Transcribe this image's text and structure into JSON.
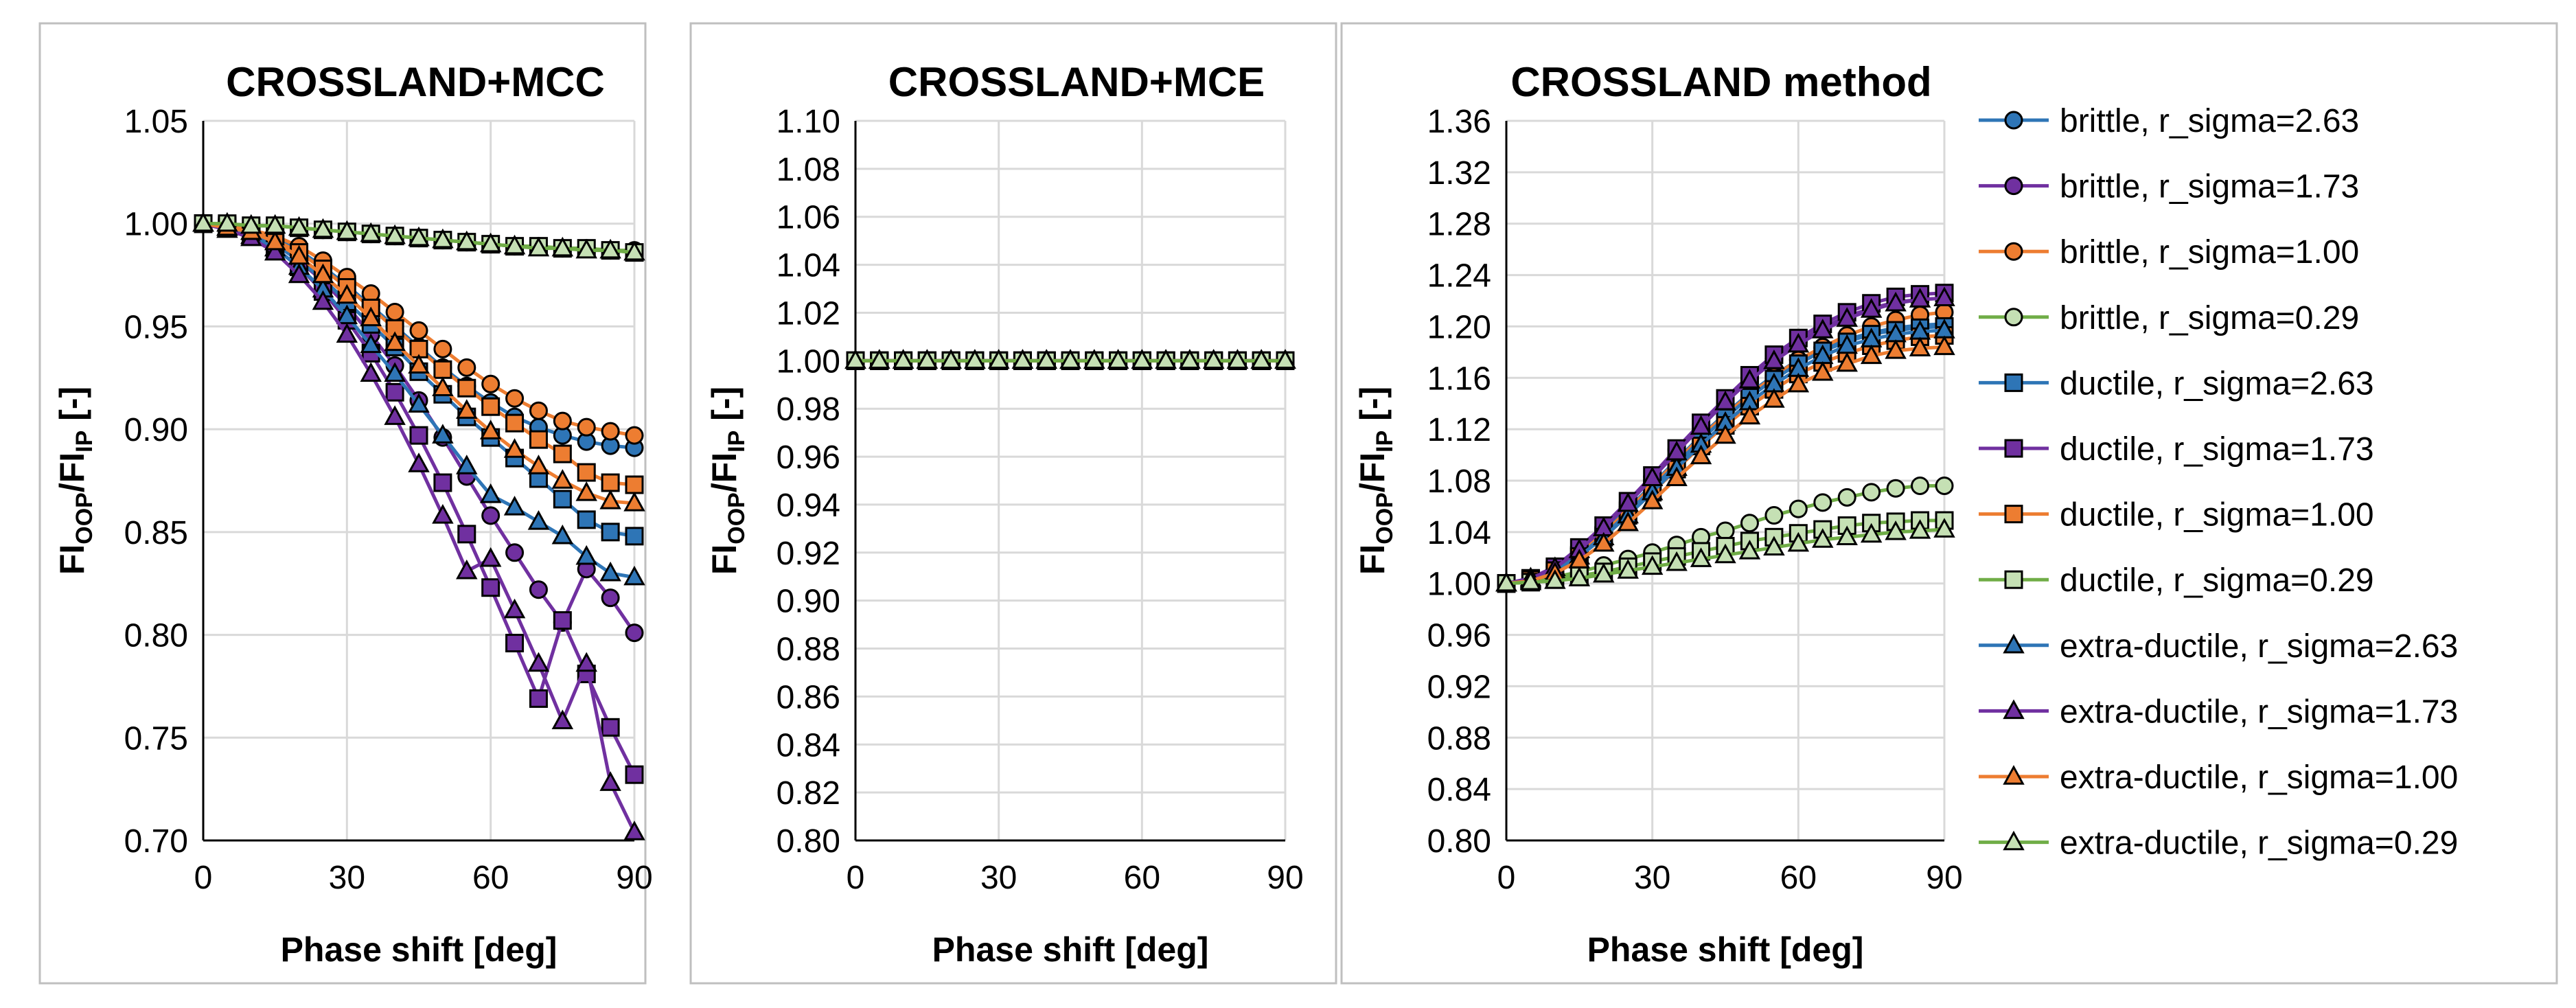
{
  "chart_data": [
    {
      "type": "line",
      "title": "CROSSLAND+MCC",
      "xlabel": "Phase shift [deg]",
      "ylabel": {
        "main1": "FI",
        "sub1": "OOP",
        "main2": "/FI",
        "sub2": "IP",
        "tail": " [-]"
      },
      "xlim": [
        0,
        90
      ],
      "ylim": [
        0.7,
        1.05
      ],
      "xticks": [
        "0",
        "30",
        "60",
        "90"
      ],
      "yticks": [
        "0.70",
        "0.75",
        "0.80",
        "0.85",
        "0.90",
        "0.95",
        "1.00",
        "1.05"
      ],
      "x": [
        0,
        5,
        10,
        15,
        20,
        25,
        30,
        35,
        40,
        45,
        50,
        55,
        60,
        65,
        70,
        75,
        80,
        85,
        90
      ],
      "series": [
        {
          "name": "brittle, r_sigma=2.63",
          "values": [
            1.0,
            0.999,
            0.997,
            0.993,
            0.987,
            0.979,
            0.97,
            0.96,
            0.95,
            0.94,
            0.93,
            0.921,
            0.913,
            0.906,
            0.901,
            0.897,
            0.894,
            0.892,
            0.891
          ]
        },
        {
          "name": "brittle, r_sigma=1.73",
          "values": [
            1.0,
            0.998,
            0.995,
            0.99,
            0.982,
            0.972,
            0.96,
            0.946,
            0.931,
            0.914,
            0.896,
            0.877,
            0.858,
            0.84,
            0.822,
            0.806,
            0.832,
            0.818,
            0.801
          ]
        },
        {
          "name": "brittle, r_sigma=1.00",
          "values": [
            1.0,
            0.999,
            0.997,
            0.994,
            0.989,
            0.982,
            0.974,
            0.966,
            0.957,
            0.948,
            0.939,
            0.93,
            0.922,
            0.915,
            0.909,
            0.904,
            0.901,
            0.899,
            0.897
          ]
        },
        {
          "name": "brittle, r_sigma=0.29",
          "values": [
            1.0,
            1.0,
            0.999,
            0.999,
            0.998,
            0.997,
            0.996,
            0.995,
            0.994,
            0.993,
            0.992,
            0.991,
            0.99,
            0.989,
            0.989,
            0.988,
            0.988,
            0.987,
            0.987
          ]
        },
        {
          "name": "ductile, r_sigma=2.63",
          "values": [
            1.0,
            0.998,
            0.995,
            0.99,
            0.982,
            0.973,
            0.962,
            0.951,
            0.94,
            0.928,
            0.917,
            0.906,
            0.896,
            0.886,
            0.876,
            0.866,
            0.856,
            0.85,
            0.848
          ]
        },
        {
          "name": "ductile, r_sigma=1.73",
          "values": [
            1.0,
            0.998,
            0.994,
            0.988,
            0.979,
            0.967,
            0.953,
            0.937,
            0.918,
            0.897,
            0.874,
            0.849,
            0.823,
            0.796,
            0.769,
            0.807,
            0.781,
            0.755,
            0.732
          ]
        },
        {
          "name": "ductile, r_sigma=1.00",
          "values": [
            1.0,
            0.999,
            0.996,
            0.992,
            0.986,
            0.978,
            0.969,
            0.959,
            0.949,
            0.939,
            0.929,
            0.92,
            0.911,
            0.903,
            0.895,
            0.888,
            0.879,
            0.874,
            0.873
          ]
        },
        {
          "name": "ductile, r_sigma=0.29",
          "values": [
            1.0,
            1.0,
            0.999,
            0.999,
            0.998,
            0.997,
            0.996,
            0.995,
            0.994,
            0.993,
            0.992,
            0.991,
            0.99,
            0.989,
            0.989,
            0.988,
            0.988,
            0.987,
            0.986
          ]
        },
        {
          "name": "extra-ductile, r_sigma=2.63",
          "values": [
            1.0,
            0.998,
            0.994,
            0.988,
            0.979,
            0.968,
            0.955,
            0.941,
            0.927,
            0.912,
            0.897,
            0.882,
            0.868,
            0.862,
            0.855,
            0.848,
            0.838,
            0.83,
            0.828
          ]
        },
        {
          "name": "extra-ductile, r_sigma=1.73",
          "values": [
            1.0,
            0.997,
            0.993,
            0.986,
            0.975,
            0.962,
            0.946,
            0.927,
            0.906,
            0.883,
            0.858,
            0.831,
            0.837,
            0.812,
            0.786,
            0.758,
            0.786,
            0.728,
            0.704
          ]
        },
        {
          "name": "extra-ductile, r_sigma=1.00",
          "values": [
            1.0,
            0.998,
            0.996,
            0.991,
            0.984,
            0.975,
            0.965,
            0.954,
            0.942,
            0.931,
            0.92,
            0.909,
            0.899,
            0.89,
            0.882,
            0.875,
            0.869,
            0.865,
            0.864
          ]
        },
        {
          "name": "extra-ductile, r_sigma=0.29",
          "values": [
            1.0,
            1.0,
            0.999,
            0.999,
            0.998,
            0.997,
            0.996,
            0.995,
            0.994,
            0.993,
            0.992,
            0.991,
            0.99,
            0.989,
            0.988,
            0.988,
            0.987,
            0.987,
            0.986
          ]
        }
      ]
    },
    {
      "type": "line",
      "title": "CROSSLAND+MCE",
      "xlabel": "Phase shift [deg]",
      "ylabel": {
        "main1": "FI",
        "sub1": "OOP",
        "main2": "/FI",
        "sub2": "IP",
        "tail": " [-]"
      },
      "xlim": [
        0,
        90
      ],
      "ylim": [
        0.8,
        1.1
      ],
      "xticks": [
        "0",
        "30",
        "60",
        "90"
      ],
      "yticks": [
        "0.80",
        "0.82",
        "0.84",
        "0.86",
        "0.88",
        "0.90",
        "0.92",
        "0.94",
        "0.96",
        "0.98",
        "1.00",
        "1.02",
        "1.04",
        "1.06",
        "1.08",
        "1.10"
      ],
      "x": [
        0,
        5,
        10,
        15,
        20,
        25,
        30,
        35,
        40,
        45,
        50,
        55,
        60,
        65,
        70,
        75,
        80,
        85,
        90
      ],
      "series": [
        {
          "name": "brittle, r_sigma=2.63",
          "values": [
            1,
            1,
            1,
            1,
            1,
            1,
            1,
            1,
            1,
            1,
            1,
            1,
            1,
            1,
            1,
            1,
            1,
            1,
            1
          ]
        },
        {
          "name": "brittle, r_sigma=1.73",
          "values": [
            1,
            1,
            1,
            1,
            1,
            1,
            1,
            1,
            1,
            1,
            1,
            1,
            1,
            1,
            1,
            1,
            1,
            1,
            1
          ]
        },
        {
          "name": "brittle, r_sigma=1.00",
          "values": [
            1,
            1,
            1,
            1,
            1,
            1,
            1,
            1,
            1,
            1,
            1,
            1,
            1,
            1,
            1,
            1,
            1,
            1,
            1
          ]
        },
        {
          "name": "brittle, r_sigma=0.29",
          "values": [
            1,
            1,
            1,
            1,
            1,
            1,
            1,
            1,
            1,
            1,
            1,
            1,
            1,
            1,
            1,
            1,
            1,
            1,
            1
          ]
        },
        {
          "name": "ductile, r_sigma=2.63",
          "values": [
            1,
            1,
            1,
            1,
            1,
            1,
            1,
            1,
            1,
            1,
            1,
            1,
            1,
            1,
            1,
            1,
            1,
            1,
            1
          ]
        },
        {
          "name": "ductile, r_sigma=1.73",
          "values": [
            1,
            1,
            1,
            1,
            1,
            1,
            1,
            1,
            1,
            1,
            1,
            1,
            1,
            1,
            1,
            1,
            1,
            1,
            1
          ]
        },
        {
          "name": "ductile, r_sigma=1.00",
          "values": [
            1,
            1,
            1,
            1,
            1,
            1,
            1,
            1,
            1,
            1,
            1,
            1,
            1,
            1,
            1,
            1,
            1,
            1,
            1
          ]
        },
        {
          "name": "ductile, r_sigma=0.29",
          "values": [
            1,
            1,
            1,
            1,
            1,
            1,
            1,
            1,
            1,
            1,
            1,
            1,
            1,
            1,
            1,
            1,
            1,
            1,
            1
          ]
        },
        {
          "name": "extra-ductile, r_sigma=2.63",
          "values": [
            1,
            1,
            1,
            1,
            1,
            1,
            1,
            1,
            1,
            1,
            1,
            1,
            1,
            1,
            1,
            1,
            1,
            1,
            1
          ]
        },
        {
          "name": "extra-ductile, r_sigma=1.73",
          "values": [
            1,
            1,
            1,
            1,
            1,
            1,
            1,
            1,
            1,
            1,
            1,
            1,
            1,
            1,
            1,
            1,
            1,
            1,
            1
          ]
        },
        {
          "name": "extra-ductile, r_sigma=1.00",
          "values": [
            1,
            1,
            1,
            1,
            1,
            1,
            1,
            1,
            1,
            1,
            1,
            1,
            1,
            1,
            1,
            1,
            1,
            1,
            1
          ]
        },
        {
          "name": "extra-ductile, r_sigma=0.29",
          "values": [
            1,
            1,
            1,
            1,
            1,
            1,
            1,
            1,
            1,
            1,
            1,
            1,
            1,
            1,
            1,
            1,
            1,
            1,
            1
          ]
        }
      ]
    },
    {
      "type": "line",
      "title": "CROSSLAND method",
      "xlabel": "Phase shift [deg]",
      "ylabel": {
        "main1": "FI",
        "sub1": "OOP",
        "main2": "/FI",
        "sub2": "IP",
        "tail": " [-]"
      },
      "xlim": [
        0,
        90
      ],
      "ylim": [
        0.8,
        1.36
      ],
      "xticks": [
        "0",
        "30",
        "60",
        "90"
      ],
      "yticks": [
        "0.80",
        "0.84",
        "0.88",
        "0.92",
        "0.96",
        "1.00",
        "1.04",
        "1.08",
        "1.12",
        "1.16",
        "1.20",
        "1.24",
        "1.28",
        "1.32",
        "1.36"
      ],
      "legend_position": "right",
      "x": [
        0,
        5,
        10,
        15,
        20,
        25,
        30,
        35,
        40,
        45,
        50,
        55,
        60,
        65,
        70,
        75,
        80,
        85,
        90
      ],
      "series": [
        {
          "name": "brittle, r_sigma=2.63",
          "values": [
            1.0,
            1.003,
            1.011,
            1.024,
            1.04,
            1.058,
            1.077,
            1.096,
            1.115,
            1.132,
            1.148,
            1.162,
            1.174,
            1.183,
            1.19,
            1.195,
            1.199,
            1.201,
            1.202
          ]
        },
        {
          "name": "brittle, r_sigma=1.73",
          "values": [
            1.0,
            1.004,
            1.013,
            1.027,
            1.044,
            1.063,
            1.083,
            1.104,
            1.124,
            1.143,
            1.16,
            1.175,
            1.188,
            1.199,
            1.208,
            1.214,
            1.219,
            1.221,
            1.222
          ]
        },
        {
          "name": "brittle, r_sigma=1.00",
          "values": [
            1.0,
            1.003,
            1.011,
            1.023,
            1.039,
            1.057,
            1.076,
            1.095,
            1.114,
            1.131,
            1.147,
            1.161,
            1.174,
            1.184,
            1.193,
            1.2,
            1.205,
            1.209,
            1.211
          ]
        },
        {
          "name": "brittle, r_sigma=0.29",
          "values": [
            1.0,
            1.002,
            1.005,
            1.009,
            1.014,
            1.019,
            1.024,
            1.03,
            1.036,
            1.041,
            1.047,
            1.053,
            1.058,
            1.063,
            1.067,
            1.071,
            1.074,
            1.076,
            1.076
          ]
        },
        {
          "name": "ductile, r_sigma=2.63",
          "values": [
            1.0,
            1.003,
            1.01,
            1.022,
            1.037,
            1.055,
            1.074,
            1.093,
            1.112,
            1.129,
            1.145,
            1.159,
            1.171,
            1.181,
            1.188,
            1.194,
            1.197,
            1.199,
            1.2
          ]
        },
        {
          "name": "ductile, r_sigma=1.73",
          "values": [
            1.0,
            1.004,
            1.013,
            1.028,
            1.045,
            1.064,
            1.084,
            1.105,
            1.125,
            1.144,
            1.162,
            1.178,
            1.191,
            1.202,
            1.211,
            1.218,
            1.223,
            1.225,
            1.226
          ]
        },
        {
          "name": "ductile, r_sigma=1.00",
          "values": [
            1.0,
            1.003,
            1.01,
            1.021,
            1.036,
            1.053,
            1.071,
            1.089,
            1.107,
            1.123,
            1.138,
            1.151,
            1.163,
            1.172,
            1.179,
            1.185,
            1.189,
            1.192,
            1.193
          ]
        },
        {
          "name": "ductile, r_sigma=0.29",
          "values": [
            1.0,
            1.001,
            1.003,
            1.006,
            1.009,
            1.013,
            1.017,
            1.021,
            1.025,
            1.029,
            1.033,
            1.036,
            1.039,
            1.042,
            1.045,
            1.047,
            1.048,
            1.049,
            1.049
          ]
        },
        {
          "name": "extra-ductile, r_sigma=2.63",
          "values": [
            1.0,
            1.003,
            1.01,
            1.021,
            1.036,
            1.053,
            1.071,
            1.09,
            1.108,
            1.125,
            1.141,
            1.155,
            1.167,
            1.177,
            1.185,
            1.19,
            1.194,
            1.196,
            1.197
          ]
        },
        {
          "name": "extra-ductile, r_sigma=1.73",
          "values": [
            1.0,
            1.004,
            1.012,
            1.026,
            1.043,
            1.062,
            1.082,
            1.102,
            1.122,
            1.141,
            1.158,
            1.173,
            1.186,
            1.197,
            1.206,
            1.213,
            1.218,
            1.221,
            1.222
          ]
        },
        {
          "name": "extra-ductile, r_sigma=1.00",
          "values": [
            1.0,
            1.002,
            1.008,
            1.018,
            1.031,
            1.047,
            1.064,
            1.082,
            1.099,
            1.115,
            1.13,
            1.143,
            1.155,
            1.164,
            1.171,
            1.177,
            1.181,
            1.183,
            1.184
          ]
        },
        {
          "name": "extra-ductile, r_sigma=0.29",
          "values": [
            1.0,
            1.001,
            1.002,
            1.004,
            1.007,
            1.01,
            1.013,
            1.016,
            1.019,
            1.022,
            1.025,
            1.028,
            1.031,
            1.034,
            1.036,
            1.038,
            1.04,
            1.041,
            1.042
          ]
        }
      ]
    }
  ],
  "legend": [
    {
      "label": "brittle, r_sigma=2.63",
      "color": "#2E75B6",
      "marker": "circle"
    },
    {
      "label": "brittle, r_sigma=1.73",
      "color": "#7030A0",
      "marker": "circle"
    },
    {
      "label": "brittle, r_sigma=1.00",
      "color": "#ED7D31",
      "marker": "circle"
    },
    {
      "label": "brittle, r_sigma=0.29",
      "color": "#70AD47",
      "fill": "#C5E0B4",
      "marker": "circle"
    },
    {
      "label": "ductile, r_sigma=2.63",
      "color": "#2E75B6",
      "marker": "square"
    },
    {
      "label": "ductile, r_sigma=1.73",
      "color": "#7030A0",
      "marker": "square"
    },
    {
      "label": "ductile, r_sigma=1.00",
      "color": "#ED7D31",
      "marker": "square"
    },
    {
      "label": "ductile, r_sigma=0.29",
      "color": "#70AD47",
      "fill": "#C5E0B4",
      "marker": "square"
    },
    {
      "label": "extra-ductile, r_sigma=2.63",
      "color": "#2E75B6",
      "marker": "triangle"
    },
    {
      "label": "extra-ductile, r_sigma=1.73",
      "color": "#7030A0",
      "marker": "triangle"
    },
    {
      "label": "extra-ductile, r_sigma=1.00",
      "color": "#ED7D31",
      "marker": "triangle"
    },
    {
      "label": "extra-ductile, r_sigma=0.29",
      "color": "#70AD47",
      "fill": "#C5E0B4",
      "marker": "triangle"
    }
  ]
}
